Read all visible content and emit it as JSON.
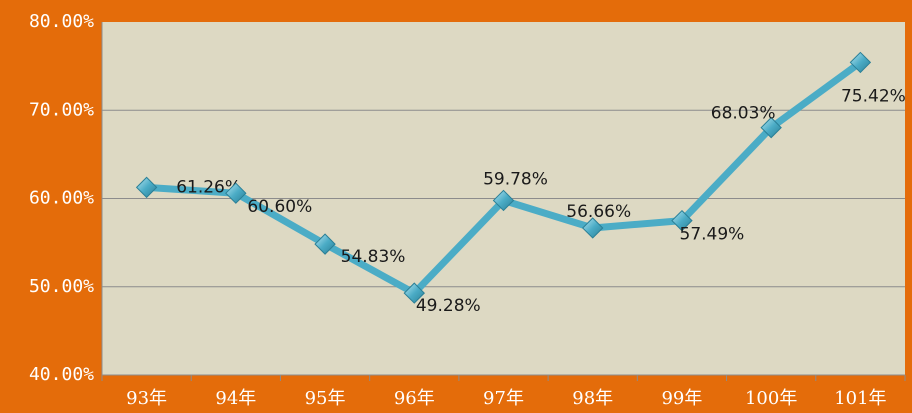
{
  "chart_data": {
    "type": "line",
    "categories": [
      "93年",
      "94年",
      "95年",
      "96年",
      "97年",
      "98年",
      "99年",
      "100年",
      "101年"
    ],
    "values": [
      61.26,
      60.6,
      54.83,
      49.28,
      59.78,
      56.66,
      57.49,
      68.03,
      75.42
    ],
    "value_labels": [
      "61.26%",
      "60.60%",
      "54.83%",
      "49.28%",
      "59.78%",
      "56.66%",
      "57.49%",
      "68.03%",
      "75.42%"
    ],
    "color": "#4bacc6",
    "ylim": [
      40,
      80
    ],
    "yticks": [
      {
        "value": 40,
        "label": "40.00%"
      },
      {
        "value": 50,
        "label": "50.00%"
      },
      {
        "value": 60,
        "label": "60.00%"
      },
      {
        "value": 70,
        "label": "70.00%"
      },
      {
        "value": 80,
        "label": "80.00%"
      }
    ],
    "grid": true
  }
}
